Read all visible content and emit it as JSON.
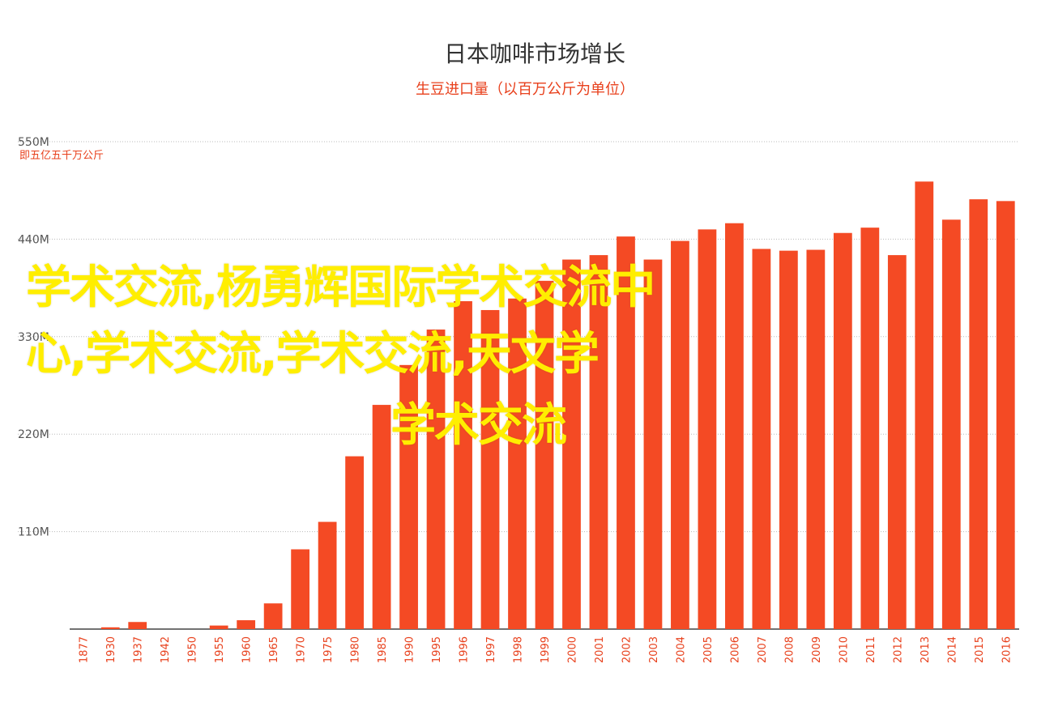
{
  "colors": {
    "bar": "#f44a24",
    "accent": "#e8401c",
    "overlay": "#ffee00",
    "grid": "#bbbbbb"
  },
  "chart_data": {
    "type": "bar",
    "title": "日本咖啡市场增长",
    "subtitle": "生豆进口量（以百万公斤为单位）",
    "yunit_label": "即五亿五千万公斤",
    "yticks": [
      "550M",
      "440M",
      "330M",
      "220M",
      "110M"
    ],
    "ytick_values": [
      550,
      440,
      330,
      220,
      110
    ],
    "ylim": [
      0,
      550
    ],
    "grid": true,
    "categories": [
      "1877",
      "1930",
      "1937",
      "1942",
      "1950",
      "1955",
      "1960",
      "1965",
      "1970",
      "1975",
      "1980",
      "1985",
      "1990",
      "1995",
      "1996",
      "1997",
      "1998",
      "1999",
      "2000",
      "2001",
      "2002",
      "2003",
      "2004",
      "2005",
      "2006",
      "2007",
      "2008",
      "2009",
      "2010",
      "2011",
      "2012",
      "2013",
      "2014",
      "2015",
      "2016"
    ],
    "values": [
      0,
      2,
      8,
      0,
      0,
      4,
      10,
      29,
      90,
      121,
      195,
      253,
      298,
      338,
      370,
      360,
      373,
      393,
      417,
      422,
      443,
      417,
      438,
      451,
      458,
      429,
      427,
      428,
      447,
      453,
      422,
      505,
      462,
      485,
      483
    ]
  },
  "overlay": {
    "line1": "学术交流,杨勇辉国际学术交流中",
    "line2": "心,学术交流,学术交流,天文学",
    "line3": "学术交流"
  }
}
